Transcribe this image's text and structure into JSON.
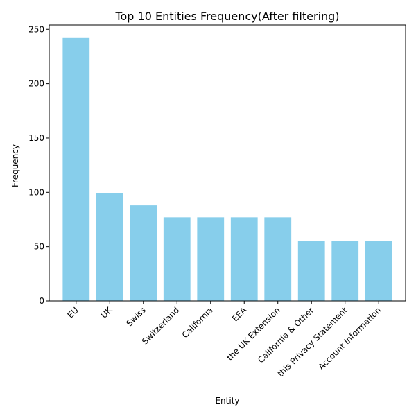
{
  "chart_data": {
    "type": "bar",
    "title": "Top 10 Entities Frequency(After filtering)",
    "xlabel": "Entity",
    "ylabel": "Frequency",
    "categories": [
      "EU",
      "UK",
      "Swiss",
      "Switzerland",
      "California",
      "EEA",
      "the UK Extension",
      "California & Other",
      "this Privacy Statement",
      "Account Information"
    ],
    "values": [
      242,
      99,
      88,
      77,
      77,
      77,
      77,
      55,
      55,
      55
    ],
    "yticks": [
      0,
      50,
      100,
      150,
      200,
      250
    ],
    "ylim": [
      0,
      254
    ],
    "bar_color": "#87ceeb",
    "grid": false,
    "legend": "none"
  }
}
